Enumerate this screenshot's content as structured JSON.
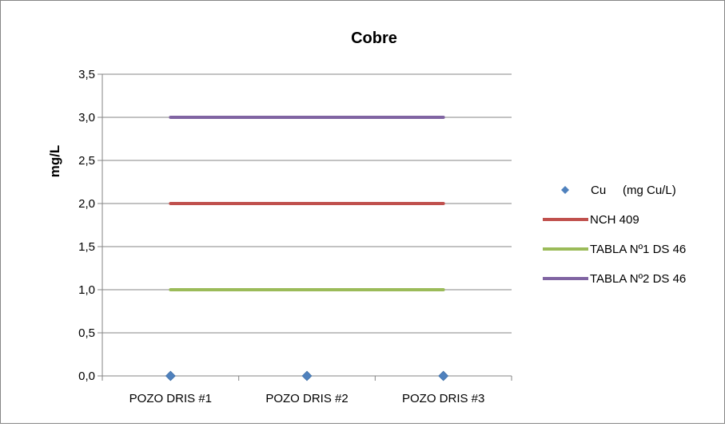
{
  "chart_data": {
    "type": "line",
    "title": "Cobre",
    "ylabel": "mg/L",
    "xlabel": "",
    "categories": [
      "POZO DRIS #1",
      "POZO DRIS #2",
      "POZO DRIS #3"
    ],
    "ylim": [
      0,
      3.5
    ],
    "yticks": [
      "0,0",
      "0,5",
      "1,0",
      "1,5",
      "2,0",
      "2,5",
      "3,0",
      "3,5"
    ],
    "grid": true,
    "legend_position": "right",
    "series": [
      {
        "name": "Cu     (mg Cu/L)",
        "kind": "marker",
        "color": "#4F81BD",
        "values": [
          0,
          0,
          0
        ]
      },
      {
        "name": "NCH 409",
        "kind": "line",
        "color": "#C0504D",
        "values": [
          2,
          2,
          2
        ]
      },
      {
        "name": "TABLA Nº1 DS 46",
        "kind": "line",
        "color": "#9BBB59",
        "values": [
          1,
          1,
          1
        ]
      },
      {
        "name": "TABLA Nº2 DS 46",
        "kind": "line",
        "color": "#8064A2",
        "values": [
          3,
          3,
          3
        ]
      }
    ]
  }
}
